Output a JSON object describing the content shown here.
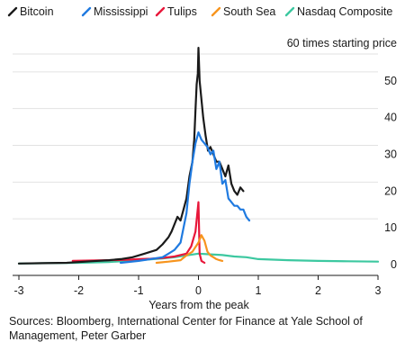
{
  "chart_data": {
    "type": "line",
    "title": "",
    "unit_note": "60 times starting price",
    "xlabel": "Years from the peak",
    "ylabel": "",
    "xlim": [
      -3,
      3
    ],
    "ylim": [
      0,
      60
    ],
    "x_ticks": [
      "-3",
      "-2",
      "-1",
      "0",
      "1",
      "2",
      "3"
    ],
    "y_ticks": [
      "0",
      "10",
      "20",
      "30",
      "40",
      "50"
    ],
    "grid": "horizontal",
    "legend_position": "top",
    "series": [
      {
        "name": "Bitcoin",
        "color": "#1a1a1a",
        "x": [
          -3.0,
          -2.6,
          -2.2,
          -1.8,
          -1.5,
          -1.3,
          -1.1,
          -0.9,
          -0.7,
          -0.6,
          -0.5,
          -0.45,
          -0.4,
          -0.35,
          -0.3,
          -0.25,
          -0.2,
          -0.15,
          -0.1,
          -0.07,
          -0.05,
          -0.03,
          -0.01,
          0.0,
          0.02,
          0.05,
          0.08,
          0.12,
          0.16,
          0.2,
          0.25,
          0.3,
          0.35,
          0.4,
          0.45,
          0.5,
          0.55,
          0.6,
          0.65,
          0.7,
          0.75
        ],
        "y": [
          0.3,
          0.4,
          0.5,
          0.9,
          1.2,
          1.5,
          2.0,
          3.0,
          4.0,
          5.5,
          7.5,
          9.0,
          11.0,
          13.0,
          12.0,
          15.0,
          18.0,
          24.0,
          28.0,
          34.0,
          42.0,
          49.0,
          52.0,
          59.0,
          50.0,
          45.0,
          40.0,
          35.0,
          31.0,
          32.0,
          30.0,
          28.0,
          28.0,
          26.0,
          24.0,
          27.0,
          22.0,
          20.0,
          19.0,
          21.0,
          20.0
        ]
      },
      {
        "name": "Mississippi",
        "color": "#1f7ae0",
        "x": [
          -1.3,
          -1.0,
          -0.8,
          -0.6,
          -0.5,
          -0.4,
          -0.3,
          -0.2,
          -0.15,
          -0.1,
          -0.05,
          0.0,
          0.05,
          0.1,
          0.15,
          0.2,
          0.25,
          0.3,
          0.35,
          0.4,
          0.45,
          0.5,
          0.55,
          0.6,
          0.65,
          0.7,
          0.75,
          0.8,
          0.85
        ],
        "y": [
          0.5,
          1.0,
          1.5,
          2.0,
          3.0,
          4.0,
          6.0,
          14.0,
          22.0,
          28.0,
          33.0,
          36.0,
          34.0,
          33.0,
          32.0,
          30.0,
          31.0,
          26.0,
          28.0,
          22.0,
          23.0,
          18.0,
          17.0,
          16.0,
          16.0,
          15.0,
          15.0,
          13.0,
          12.0
        ]
      },
      {
        "name": "Tulips",
        "color": "#e8173a",
        "x": [
          -2.1,
          -1.8,
          -1.5,
          -1.2,
          -1.0,
          -0.8,
          -0.6,
          -0.4,
          -0.2,
          -0.12,
          -0.05,
          0.0,
          0.02,
          0.05,
          0.1
        ],
        "y": [
          1.0,
          1.1,
          1.2,
          1.3,
          1.5,
          1.6,
          1.8,
          2.2,
          3.0,
          5.0,
          9.0,
          17.0,
          3.0,
          1.0,
          0.5
        ]
      },
      {
        "name": "South Sea",
        "color": "#f7941d",
        "x": [
          -0.7,
          -0.5,
          -0.3,
          -0.2,
          -0.1,
          0.0,
          0.05,
          0.1,
          0.15,
          0.2,
          0.25,
          0.3,
          0.35,
          0.4
        ],
        "y": [
          0.5,
          0.8,
          1.2,
          2.5,
          3.5,
          6.0,
          8.0,
          6.5,
          3.5,
          2.5,
          2.0,
          1.5,
          1.2,
          1.0
        ]
      },
      {
        "name": "Nasdaq Composite",
        "color": "#3cc8a0",
        "x": [
          -3.0,
          -2.5,
          -2.0,
          -1.5,
          -1.0,
          -0.6,
          -0.4,
          -0.2,
          0.0,
          0.2,
          0.4,
          0.6,
          0.8,
          1.0,
          1.5,
          2.0,
          2.5,
          3.0
        ],
        "y": [
          0.3,
          0.4,
          0.5,
          0.7,
          1.2,
          1.7,
          2.0,
          2.5,
          3.0,
          2.8,
          2.6,
          2.2,
          2.0,
          1.5,
          1.2,
          1.0,
          0.9,
          0.8
        ]
      }
    ]
  },
  "source": "Sources: Bloomberg, International Center for Finance at Yale School of Management, Peter Garber"
}
